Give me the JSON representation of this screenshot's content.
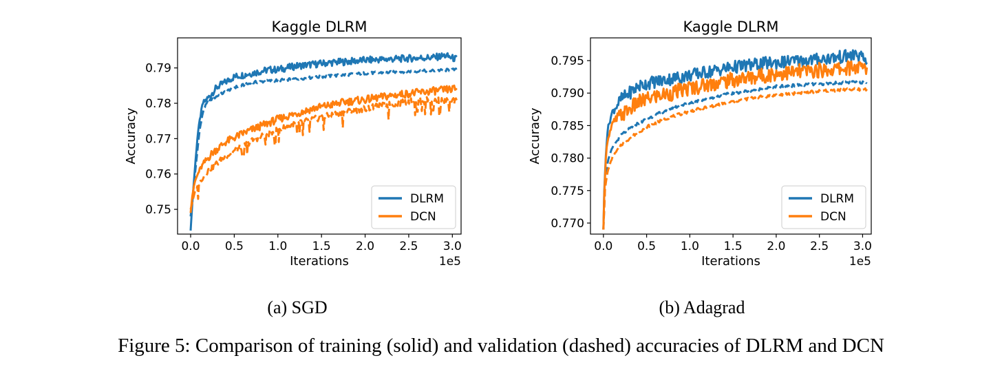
{
  "caption": "Figure 5: Comparison of training (solid) and validation (dashed) accuracies of DLRM and DCN",
  "colors": {
    "dlrm": "#1f77b4",
    "dcn": "#ff7f0e"
  },
  "chart_data": [
    {
      "type": "line",
      "subcaption": "(a) SGD",
      "title": "Kaggle DLRM",
      "xlabel": "Iterations",
      "ylabel": "Accuracy",
      "x_multiplier_label": "1e5",
      "xlim": [
        -0.15,
        3.1
      ],
      "ylim": [
        0.743,
        0.7985
      ],
      "xticks": [
        "0.0",
        "0.5",
        "1.0",
        "1.5",
        "2.0",
        "2.5",
        "3.0"
      ],
      "yticks": [
        "0.75",
        "0.76",
        "0.77",
        "0.78",
        "0.79"
      ],
      "grid": false,
      "legend_position": "lower-right",
      "series": [
        {
          "name": "DLRM",
          "style": "solid",
          "color": "#1f77b4",
          "points": [
            [
              0.0,
              0.744
            ],
            [
              0.02,
              0.752
            ],
            [
              0.05,
              0.762
            ],
            [
              0.08,
              0.771
            ],
            [
              0.11,
              0.776
            ],
            [
              0.14,
              0.78
            ],
            [
              0.2,
              0.7815
            ],
            [
              0.3,
              0.7845
            ],
            [
              0.4,
              0.786
            ],
            [
              0.5,
              0.7875
            ],
            [
              0.6,
              0.788
            ],
            [
              0.7,
              0.7885
            ],
            [
              0.8,
              0.789
            ],
            [
              0.9,
              0.7895
            ],
            [
              1.0,
              0.7895
            ],
            [
              1.2,
              0.7905
            ],
            [
              1.4,
              0.791
            ],
            [
              1.6,
              0.7915
            ],
            [
              1.8,
              0.7918
            ],
            [
              2.0,
              0.7922
            ],
            [
              2.2,
              0.7924
            ],
            [
              2.4,
              0.7926
            ],
            [
              2.6,
              0.7928
            ],
            [
              2.8,
              0.793
            ],
            [
              2.92,
              0.7935
            ],
            [
              3.0,
              0.7928
            ],
            [
              3.05,
              0.7925
            ]
          ]
        },
        {
          "name": "",
          "style": "dashed",
          "color": "#1f77b4",
          "points": [
            [
              0.0,
              0.748
            ],
            [
              0.05,
              0.76
            ],
            [
              0.1,
              0.772
            ],
            [
              0.15,
              0.7785
            ],
            [
              0.2,
              0.7805
            ],
            [
              0.3,
              0.782
            ],
            [
              0.5,
              0.7845
            ],
            [
              0.75,
              0.786
            ],
            [
              1.0,
              0.7865
            ],
            [
              1.25,
              0.787
            ],
            [
              1.5,
              0.7875
            ],
            [
              1.75,
              0.788
            ],
            [
              2.0,
              0.7885
            ],
            [
              2.25,
              0.7887
            ],
            [
              2.5,
              0.789
            ],
            [
              2.75,
              0.7892
            ],
            [
              3.05,
              0.7895
            ]
          ]
        },
        {
          "name": "DCN",
          "style": "solid",
          "color": "#ff7f0e",
          "points": [
            [
              0.0,
              0.749
            ],
            [
              0.02,
              0.754
            ],
            [
              0.05,
              0.758
            ],
            [
              0.1,
              0.761
            ],
            [
              0.15,
              0.763
            ],
            [
              0.25,
              0.766
            ],
            [
              0.4,
              0.769
            ],
            [
              0.6,
              0.7715
            ],
            [
              0.8,
              0.7735
            ],
            [
              1.0,
              0.7755
            ],
            [
              1.2,
              0.777
            ],
            [
              1.4,
              0.7785
            ],
            [
              1.6,
              0.7795
            ],
            [
              1.8,
              0.7805
            ],
            [
              2.0,
              0.781
            ],
            [
              2.2,
              0.7818
            ],
            [
              2.4,
              0.7825
            ],
            [
              2.6,
              0.783
            ],
            [
              2.8,
              0.7835
            ],
            [
              3.0,
              0.784
            ],
            [
              3.05,
              0.7842
            ]
          ]
        },
        {
          "name": "",
          "style": "dashed",
          "color": "#ff7f0e",
          "points": [
            [
              0.0,
              0.75
            ],
            [
              0.05,
              0.755
            ],
            [
              0.1,
              0.7575
            ],
            [
              0.2,
              0.761
            ],
            [
              0.35,
              0.764
            ],
            [
              0.5,
              0.7665
            ],
            [
              0.75,
              0.77
            ],
            [
              1.0,
              0.7725
            ],
            [
              1.25,
              0.7745
            ],
            [
              1.5,
              0.776
            ],
            [
              1.75,
              0.7775
            ],
            [
              2.0,
              0.7785
            ],
            [
              2.25,
              0.7795
            ],
            [
              2.5,
              0.7805
            ],
            [
              2.75,
              0.781
            ],
            [
              3.05,
              0.7805
            ]
          ]
        }
      ]
    },
    {
      "type": "line",
      "subcaption": "(b) Adagrad",
      "title": "Kaggle DLRM",
      "xlabel": "Iterations",
      "ylabel": "Accuracy",
      "x_multiplier_label": "1e5",
      "xlim": [
        -0.15,
        3.1
      ],
      "ylim": [
        0.7683,
        0.7985
      ],
      "xticks": [
        "0.0",
        "0.5",
        "1.0",
        "1.5",
        "2.0",
        "2.5",
        "3.0"
      ],
      "yticks": [
        "0.770",
        "0.775",
        "0.780",
        "0.785",
        "0.790",
        "0.795"
      ],
      "grid": false,
      "legend_position": "lower-right",
      "series": [
        {
          "name": "DLRM",
          "style": "solid",
          "color": "#1f77b4",
          "points": [
            [
              0.0,
              0.769
            ],
            [
              0.01,
              0.775
            ],
            [
              0.03,
              0.781
            ],
            [
              0.05,
              0.7845
            ],
            [
              0.1,
              0.787
            ],
            [
              0.15,
              0.788
            ],
            [
              0.2,
              0.789
            ],
            [
              0.3,
              0.79
            ],
            [
              0.4,
              0.791
            ],
            [
              0.5,
              0.7915
            ],
            [
              0.7,
              0.792
            ],
            [
              0.9,
              0.7925
            ],
            [
              1.1,
              0.793
            ],
            [
              1.3,
              0.7935
            ],
            [
              1.5,
              0.794
            ],
            [
              1.7,
              0.7943
            ],
            [
              1.9,
              0.7946
            ],
            [
              2.1,
              0.7948
            ],
            [
              2.3,
              0.795
            ],
            [
              2.5,
              0.7952
            ],
            [
              2.7,
              0.7955
            ],
            [
              2.9,
              0.7958
            ],
            [
              2.93,
              0.796
            ],
            [
              3.05,
              0.7948
            ]
          ]
        },
        {
          "name": "",
          "style": "dashed",
          "color": "#1f77b4",
          "points": [
            [
              0.0,
              0.769
            ],
            [
              0.02,
              0.776
            ],
            [
              0.05,
              0.7795
            ],
            [
              0.1,
              0.7815
            ],
            [
              0.2,
              0.7835
            ],
            [
              0.35,
              0.785
            ],
            [
              0.5,
              0.786
            ],
            [
              0.75,
              0.7875
            ],
            [
              1.0,
              0.7885
            ],
            [
              1.25,
              0.7893
            ],
            [
              1.5,
              0.79
            ],
            [
              1.75,
              0.7905
            ],
            [
              2.0,
              0.791
            ],
            [
              2.25,
              0.7912
            ],
            [
              2.5,
              0.7914
            ],
            [
              2.75,
              0.7916
            ],
            [
              3.05,
              0.7917
            ]
          ]
        },
        {
          "name": "DCN",
          "style": "solid",
          "color": "#ff7f0e",
          "points": [
            [
              0.0,
              0.769
            ],
            [
              0.01,
              0.7745
            ],
            [
              0.03,
              0.7805
            ],
            [
              0.05,
              0.783
            ],
            [
              0.1,
              0.785
            ],
            [
              0.15,
              0.786
            ],
            [
              0.25,
              0.787
            ],
            [
              0.4,
              0.7885
            ],
            [
              0.6,
              0.7895
            ],
            [
              0.8,
              0.79
            ],
            [
              1.0,
              0.7908
            ],
            [
              1.2,
              0.7913
            ],
            [
              1.4,
              0.7918
            ],
            [
              1.6,
              0.7922
            ],
            [
              1.8,
              0.7926
            ],
            [
              2.0,
              0.793
            ],
            [
              2.2,
              0.7932
            ],
            [
              2.4,
              0.7934
            ],
            [
              2.6,
              0.7936
            ],
            [
              2.8,
              0.7938
            ],
            [
              2.92,
              0.794
            ],
            [
              3.05,
              0.7937
            ]
          ]
        },
        {
          "name": "",
          "style": "dashed",
          "color": "#ff7f0e",
          "points": [
            [
              0.0,
              0.769
            ],
            [
              0.02,
              0.7755
            ],
            [
              0.05,
              0.778
            ],
            [
              0.1,
              0.78
            ],
            [
              0.2,
              0.782
            ],
            [
              0.35,
              0.7835
            ],
            [
              0.5,
              0.7848
            ],
            [
              0.75,
              0.7862
            ],
            [
              1.0,
              0.7872
            ],
            [
              1.25,
              0.788
            ],
            [
              1.5,
              0.7887
            ],
            [
              1.75,
              0.7893
            ],
            [
              2.0,
              0.7897
            ],
            [
              2.25,
              0.79
            ],
            [
              2.5,
              0.7903
            ],
            [
              2.75,
              0.7905
            ],
            [
              3.05,
              0.7906
            ]
          ]
        }
      ]
    }
  ]
}
